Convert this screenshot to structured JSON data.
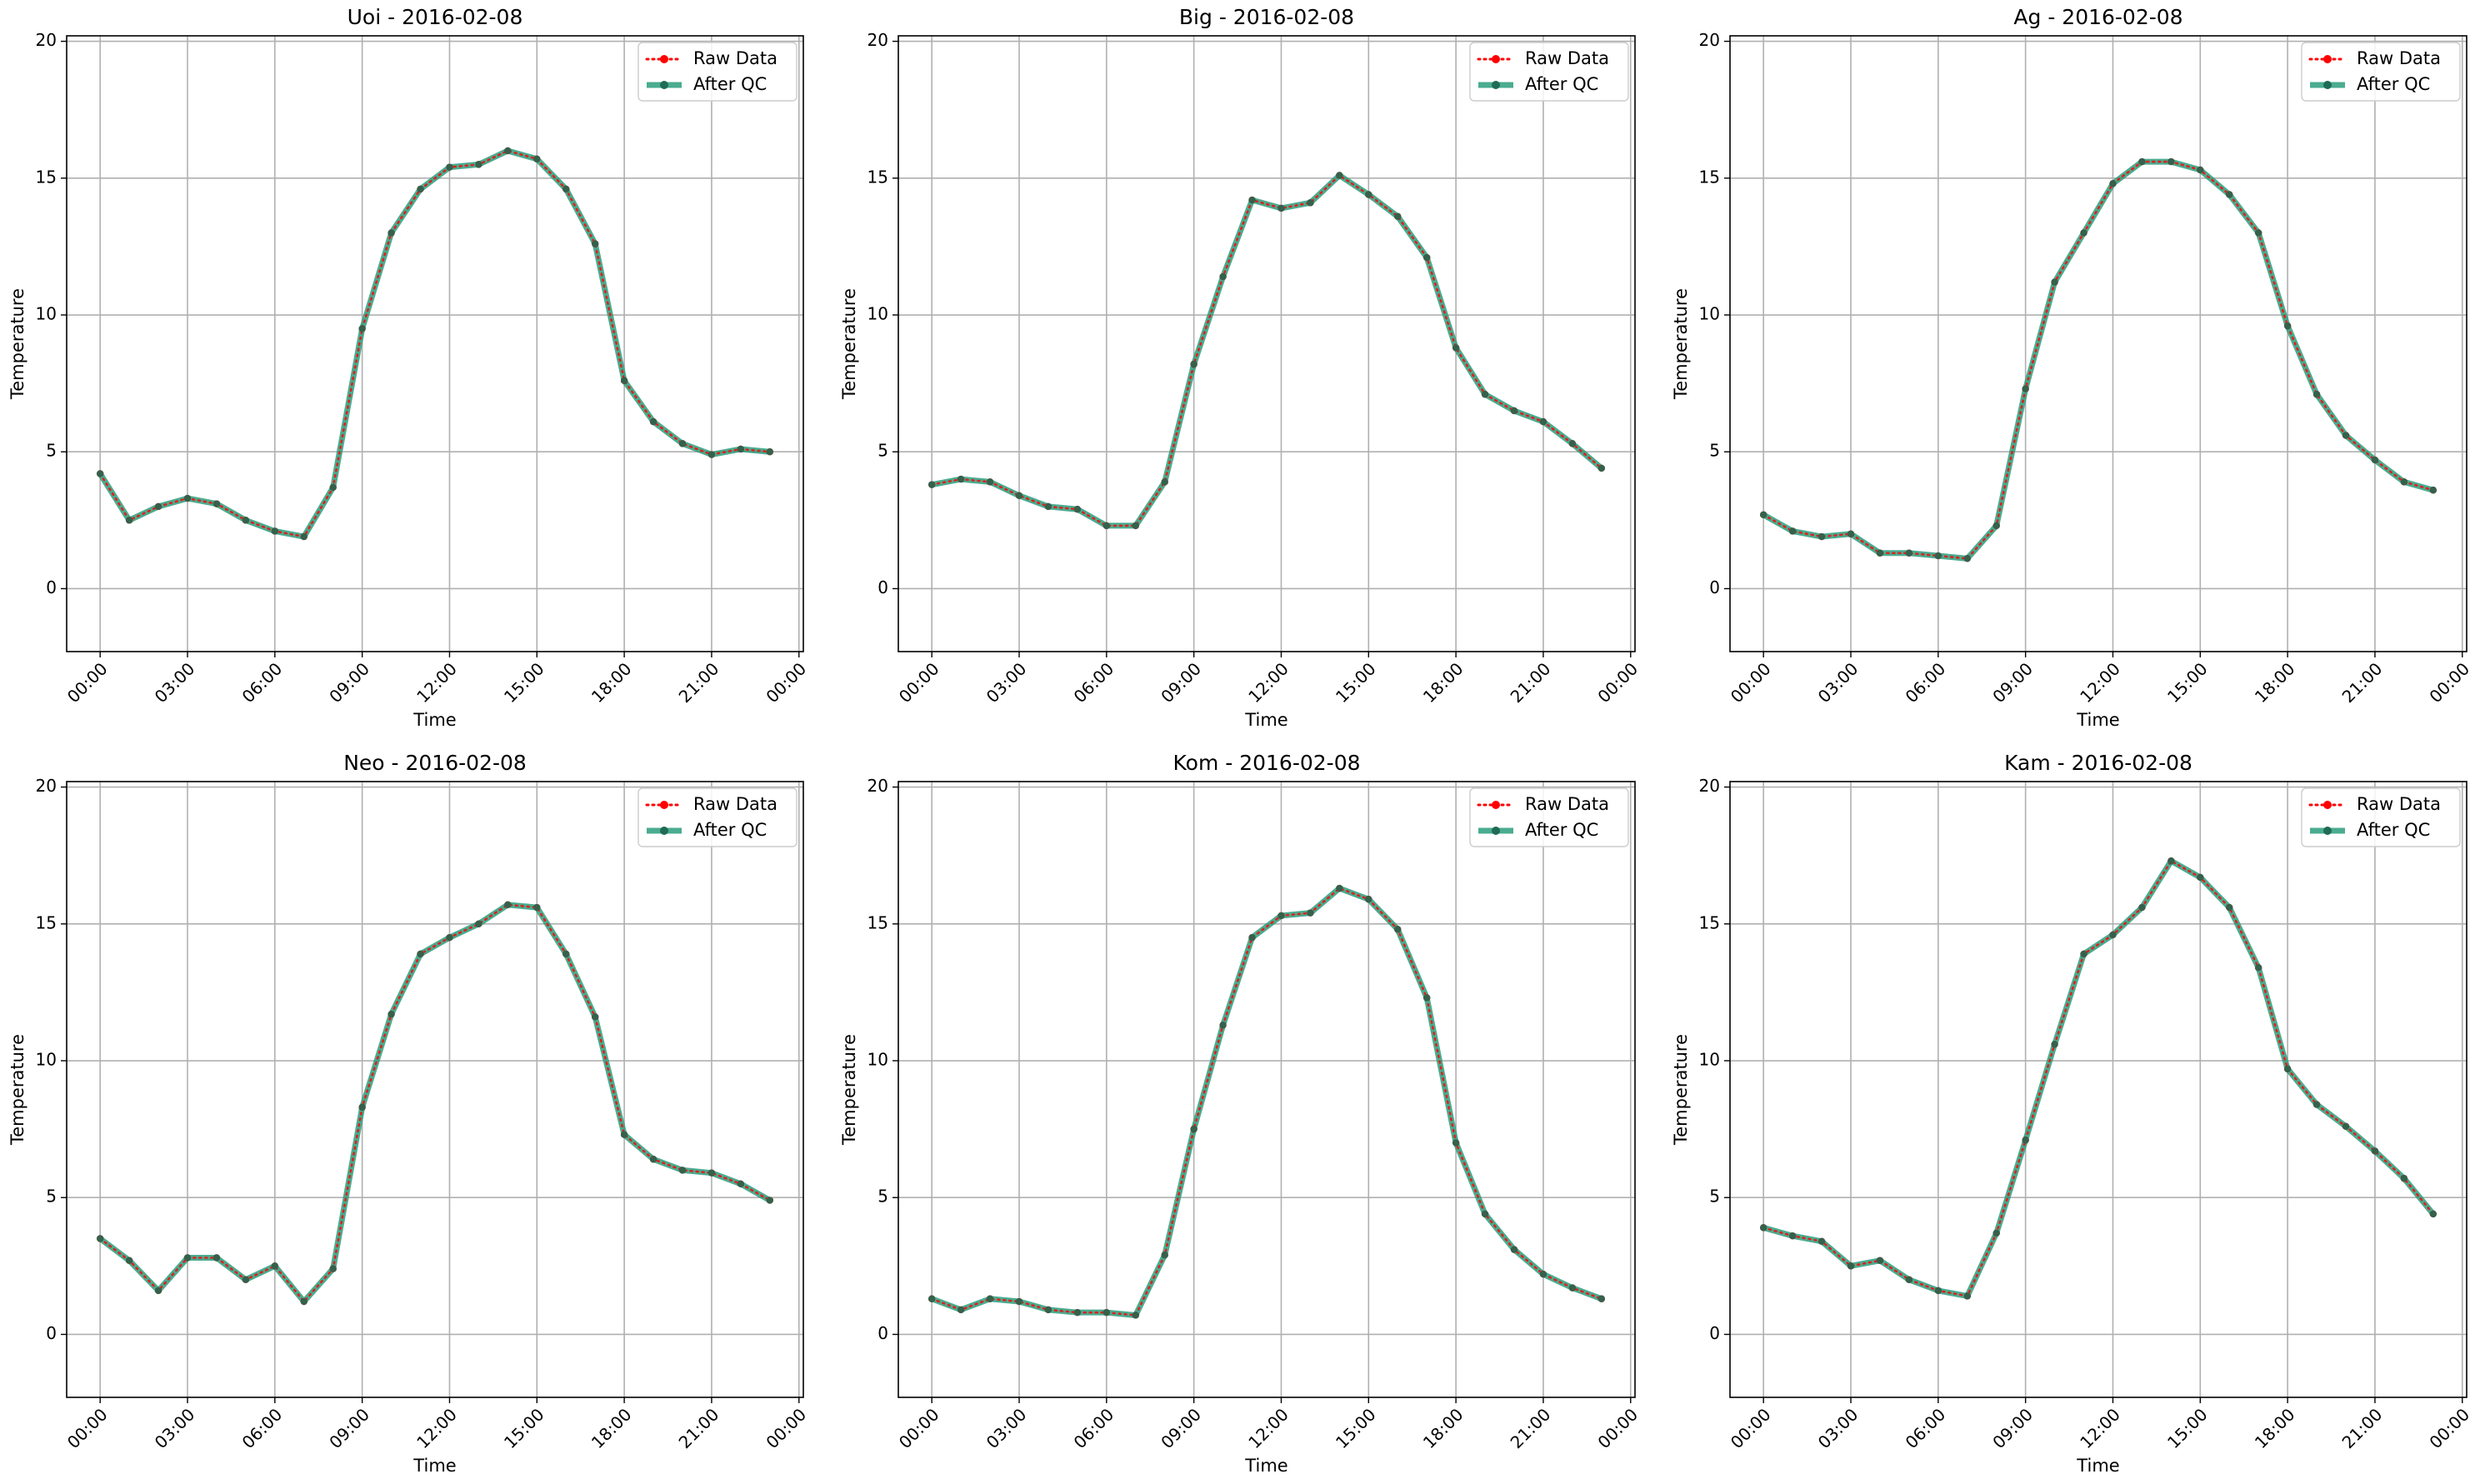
{
  "figure": {
    "colors": {
      "raw": "#ff0000",
      "qc": "#2a9d7c",
      "qc_marker": "#1f6b54",
      "grid": "#b0b0b0",
      "axes": "#000000"
    },
    "legend_position": "top-right",
    "grid": true
  },
  "chart_data": [
    {
      "type": "line",
      "title": "Uoi - 2016-02-08",
      "xlabel": "Time",
      "ylabel": "Temperature",
      "ylim": [
        -2.3,
        20.2
      ],
      "xlim": [
        -1.15,
        24.15
      ],
      "yticks": [
        0,
        5,
        10,
        15,
        20
      ],
      "xticks": [
        0,
        3,
        6,
        9,
        12,
        15,
        18,
        21,
        24
      ],
      "xtick_labels": [
        "00:00",
        "03:00",
        "06:00",
        "09:00",
        "12:00",
        "15:00",
        "18:00",
        "21:00",
        "00:00"
      ],
      "legend": [
        "Raw Data",
        "After QC"
      ],
      "x": [
        0,
        1,
        2,
        3,
        4,
        5,
        6,
        7,
        8,
        9,
        10,
        11,
        12,
        13,
        14,
        15,
        16,
        17,
        18,
        19,
        20,
        21,
        22,
        23
      ],
      "series": [
        {
          "name": "Raw Data",
          "values": [
            4.2,
            2.5,
            3.0,
            3.3,
            3.1,
            2.5,
            2.1,
            1.9,
            3.7,
            9.5,
            13.0,
            14.6,
            15.4,
            15.5,
            16.0,
            15.7,
            14.6,
            12.6,
            7.6,
            6.1,
            5.3,
            4.9,
            5.1,
            5.0
          ]
        },
        {
          "name": "After QC",
          "values": [
            4.2,
            2.5,
            3.0,
            3.3,
            3.1,
            2.5,
            2.1,
            1.9,
            3.7,
            9.5,
            13.0,
            14.6,
            15.4,
            15.5,
            16.0,
            15.7,
            14.6,
            12.6,
            7.6,
            6.1,
            5.3,
            4.9,
            5.1,
            5.0
          ]
        }
      ]
    },
    {
      "type": "line",
      "title": "Big - 2016-02-08",
      "xlabel": "Time",
      "ylabel": "Temperature",
      "ylim": [
        -2.3,
        20.2
      ],
      "xlim": [
        -1.15,
        24.15
      ],
      "yticks": [
        0,
        5,
        10,
        15,
        20
      ],
      "xticks": [
        0,
        3,
        6,
        9,
        12,
        15,
        18,
        21,
        24
      ],
      "xtick_labels": [
        "00:00",
        "03:00",
        "06:00",
        "09:00",
        "12:00",
        "15:00",
        "18:00",
        "21:00",
        "00:00"
      ],
      "legend": [
        "Raw Data",
        "After QC"
      ],
      "x": [
        0,
        1,
        2,
        3,
        4,
        5,
        6,
        7,
        8,
        9,
        10,
        11,
        12,
        13,
        14,
        15,
        16,
        17,
        18,
        19,
        20,
        21,
        22,
        23
      ],
      "series": [
        {
          "name": "Raw Data",
          "values": [
            3.8,
            4.0,
            3.9,
            3.4,
            3.0,
            2.9,
            2.3,
            2.3,
            3.9,
            8.2,
            11.4,
            14.2,
            13.9,
            14.1,
            15.1,
            14.4,
            13.6,
            12.1,
            8.8,
            7.1,
            6.5,
            6.1,
            5.3,
            4.4
          ]
        },
        {
          "name": "After QC",
          "values": [
            3.8,
            4.0,
            3.9,
            3.4,
            3.0,
            2.9,
            2.3,
            2.3,
            3.9,
            8.2,
            11.4,
            14.2,
            13.9,
            14.1,
            15.1,
            14.4,
            13.6,
            12.1,
            8.8,
            7.1,
            6.5,
            6.1,
            5.3,
            4.4
          ]
        }
      ]
    },
    {
      "type": "line",
      "title": "Ag - 2016-02-08",
      "xlabel": "Time",
      "ylabel": "Temperature",
      "ylim": [
        -2.3,
        20.2
      ],
      "xlim": [
        -1.15,
        24.15
      ],
      "yticks": [
        0,
        5,
        10,
        15,
        20
      ],
      "xticks": [
        0,
        3,
        6,
        9,
        12,
        15,
        18,
        21,
        24
      ],
      "xtick_labels": [
        "00:00",
        "03:00",
        "06:00",
        "09:00",
        "12:00",
        "15:00",
        "18:00",
        "21:00",
        "00:00"
      ],
      "legend": [
        "Raw Data",
        "After QC"
      ],
      "x": [
        0,
        1,
        2,
        3,
        4,
        5,
        6,
        7,
        8,
        9,
        10,
        11,
        12,
        13,
        14,
        15,
        16,
        17,
        18,
        19,
        20,
        21,
        22,
        23
      ],
      "series": [
        {
          "name": "Raw Data",
          "values": [
            2.7,
            2.1,
            1.9,
            2.0,
            1.3,
            1.3,
            1.2,
            1.1,
            2.3,
            7.3,
            11.2,
            13.0,
            14.8,
            15.6,
            15.6,
            15.3,
            14.4,
            13.0,
            9.6,
            7.1,
            5.6,
            4.7,
            3.9,
            3.6
          ]
        },
        {
          "name": "After QC",
          "values": [
            2.7,
            2.1,
            1.9,
            2.0,
            1.3,
            1.3,
            1.2,
            1.1,
            2.3,
            7.3,
            11.2,
            13.0,
            14.8,
            15.6,
            15.6,
            15.3,
            14.4,
            13.0,
            9.6,
            7.1,
            5.6,
            4.7,
            3.9,
            3.6
          ]
        }
      ]
    },
    {
      "type": "line",
      "title": "Neo - 2016-02-08",
      "xlabel": "Time",
      "ylabel": "Temperature",
      "ylim": [
        -2.3,
        20.2
      ],
      "xlim": [
        -1.15,
        24.15
      ],
      "yticks": [
        0,
        5,
        10,
        15,
        20
      ],
      "xticks": [
        0,
        3,
        6,
        9,
        12,
        15,
        18,
        21,
        24
      ],
      "xtick_labels": [
        "00:00",
        "03:00",
        "06:00",
        "09:00",
        "12:00",
        "15:00",
        "18:00",
        "21:00",
        "00:00"
      ],
      "legend": [
        "Raw Data",
        "After QC"
      ],
      "x": [
        0,
        1,
        2,
        3,
        4,
        5,
        6,
        7,
        8,
        9,
        10,
        11,
        12,
        13,
        14,
        15,
        16,
        17,
        18,
        19,
        20,
        21,
        22,
        23
      ],
      "series": [
        {
          "name": "Raw Data",
          "values": [
            3.5,
            2.7,
            1.6,
            2.8,
            2.8,
            2.0,
            2.5,
            1.2,
            2.4,
            8.3,
            11.7,
            13.9,
            14.5,
            15.0,
            15.7,
            15.6,
            13.9,
            11.6,
            7.3,
            6.4,
            6.0,
            5.9,
            5.5,
            4.9
          ]
        },
        {
          "name": "After QC",
          "values": [
            3.5,
            2.7,
            1.6,
            2.8,
            2.8,
            2.0,
            2.5,
            1.2,
            2.4,
            8.3,
            11.7,
            13.9,
            14.5,
            15.0,
            15.7,
            15.6,
            13.9,
            11.6,
            7.3,
            6.4,
            6.0,
            5.9,
            5.5,
            4.9
          ]
        }
      ]
    },
    {
      "type": "line",
      "title": "Kom - 2016-02-08",
      "xlabel": "Time",
      "ylabel": "Temperature",
      "ylim": [
        -2.3,
        20.2
      ],
      "xlim": [
        -1.15,
        24.15
      ],
      "yticks": [
        0,
        5,
        10,
        15,
        20
      ],
      "xticks": [
        0,
        3,
        6,
        9,
        12,
        15,
        18,
        21,
        24
      ],
      "xtick_labels": [
        "00:00",
        "03:00",
        "06:00",
        "09:00",
        "12:00",
        "15:00",
        "18:00",
        "21:00",
        "00:00"
      ],
      "legend": [
        "Raw Data",
        "After QC"
      ],
      "x": [
        0,
        1,
        2,
        3,
        4,
        5,
        6,
        7,
        8,
        9,
        10,
        11,
        12,
        13,
        14,
        15,
        16,
        17,
        18,
        19,
        20,
        21,
        22,
        23
      ],
      "series": [
        {
          "name": "Raw Data",
          "values": [
            1.3,
            0.9,
            1.3,
            1.2,
            0.9,
            0.8,
            0.8,
            0.7,
            2.9,
            7.5,
            11.3,
            14.5,
            15.3,
            15.4,
            16.3,
            15.9,
            14.8,
            12.3,
            7.0,
            4.4,
            3.1,
            2.2,
            1.7,
            1.3
          ]
        },
        {
          "name": "After QC",
          "values": [
            1.3,
            0.9,
            1.3,
            1.2,
            0.9,
            0.8,
            0.8,
            0.7,
            2.9,
            7.5,
            11.3,
            14.5,
            15.3,
            15.4,
            16.3,
            15.9,
            14.8,
            12.3,
            7.0,
            4.4,
            3.1,
            2.2,
            1.7,
            1.3
          ]
        }
      ]
    },
    {
      "type": "line",
      "title": "Kam - 2016-02-08",
      "xlabel": "Time",
      "ylabel": "Temperature",
      "ylim": [
        -2.3,
        20.2
      ],
      "xlim": [
        -1.15,
        24.15
      ],
      "yticks": [
        0,
        5,
        10,
        15,
        20
      ],
      "xticks": [
        0,
        3,
        6,
        9,
        12,
        15,
        18,
        21,
        24
      ],
      "xtick_labels": [
        "00:00",
        "03:00",
        "06:00",
        "09:00",
        "12:00",
        "15:00",
        "18:00",
        "21:00",
        "00:00"
      ],
      "legend": [
        "Raw Data",
        "After QC"
      ],
      "x": [
        0,
        1,
        2,
        3,
        4,
        5,
        6,
        7,
        8,
        9,
        10,
        11,
        12,
        13,
        14,
        15,
        16,
        17,
        18,
        19,
        20,
        21,
        22,
        23
      ],
      "series": [
        {
          "name": "Raw Data",
          "values": [
            3.9,
            3.6,
            3.4,
            2.5,
            2.7,
            2.0,
            1.6,
            1.4,
            3.7,
            7.1,
            10.6,
            13.9,
            14.6,
            15.6,
            17.3,
            16.7,
            15.6,
            13.4,
            9.7,
            8.4,
            7.6,
            6.7,
            5.7,
            4.4
          ]
        },
        {
          "name": "After QC",
          "values": [
            3.9,
            3.6,
            3.4,
            2.5,
            2.7,
            2.0,
            1.6,
            1.4,
            3.7,
            7.1,
            10.6,
            13.9,
            14.6,
            15.6,
            17.3,
            16.7,
            15.6,
            13.4,
            9.7,
            8.4,
            7.6,
            6.7,
            5.7,
            4.4
          ]
        }
      ]
    }
  ]
}
